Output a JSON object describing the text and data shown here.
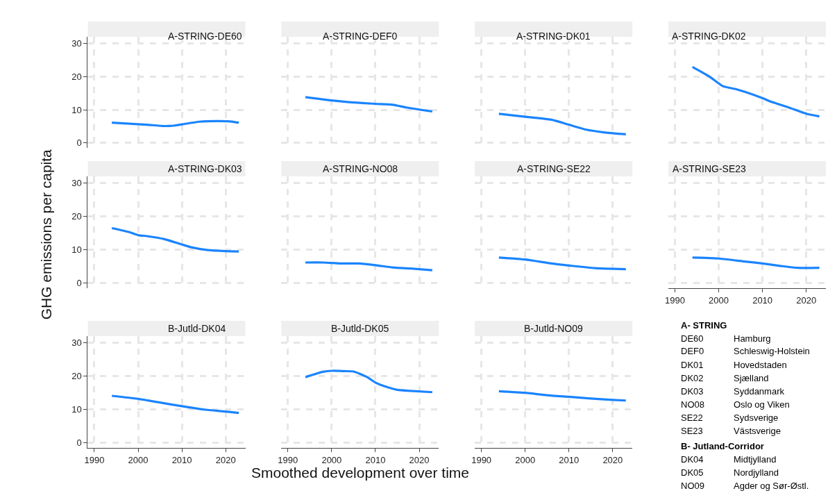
{
  "chart_data": [
    {
      "type": "line",
      "title": "A-STRING-DE60",
      "x": [
        1994,
        1998,
        2002,
        2006,
        2008,
        2010,
        2014,
        2018,
        2021,
        2023
      ],
      "values": [
        6.1,
        5.8,
        5.5,
        5.1,
        5.2,
        5.6,
        6.4,
        6.6,
        6.5,
        6.1
      ],
      "color": "#1a84ff",
      "xlim": [
        1988.5,
        2024.5
      ],
      "xticks": [
        1990,
        2000,
        2010,
        2020
      ],
      "ylim": [
        -1.5,
        32
      ],
      "yticks": [
        0,
        10,
        20,
        30
      ],
      "grid": true,
      "tick_labels": "y"
    },
    {
      "type": "line",
      "title": "A-STRING-DEF0",
      "x": [
        1994,
        2000,
        2004,
        2010,
        2014,
        2017,
        2023
      ],
      "values": [
        13.8,
        12.8,
        12.3,
        11.8,
        11.5,
        10.7,
        9.5
      ],
      "color": "#1a84ff",
      "xlim": [
        1988.5,
        2024.5
      ],
      "xticks": [
        1990,
        2000,
        2010,
        2020
      ],
      "ylim": [
        -1.5,
        32
      ],
      "yticks": [
        0,
        10,
        20,
        30
      ],
      "grid": true,
      "tick_labels": false
    },
    {
      "type": "line",
      "title": "A-STRING-DK01",
      "x": [
        1994,
        2000,
        2006,
        2010,
        2014,
        2018,
        2023
      ],
      "values": [
        8.8,
        7.9,
        7.0,
        5.5,
        4.0,
        3.2,
        2.6
      ],
      "color": "#1a84ff",
      "xlim": [
        1988.5,
        2024.5
      ],
      "xticks": [
        1990,
        2000,
        2010,
        2020
      ],
      "ylim": [
        -1.5,
        32
      ],
      "yticks": [
        0,
        10,
        20,
        30
      ],
      "grid": true,
      "tick_labels": false
    },
    {
      "type": "line",
      "title": "A-STRING-DK02",
      "x": [
        1994,
        1998,
        2001,
        2004,
        2006,
        2010,
        2012,
        2016,
        2020,
        2023
      ],
      "values": [
        22.9,
        19.9,
        17.1,
        16.2,
        15.4,
        13.5,
        12.4,
        10.7,
        8.8,
        8.0
      ],
      "color": "#1a84ff",
      "xlim": [
        1988.5,
        2024.5
      ],
      "xticks": [
        1990,
        2000,
        2010,
        2020
      ],
      "ylim": [
        -1.5,
        32
      ],
      "yticks": [
        0,
        10,
        20,
        30
      ],
      "grid": true,
      "tick_labels": false
    },
    {
      "type": "line",
      "title": "A-STRING-DK03",
      "ylabel": "GHG emissions per capita",
      "x": [
        1994,
        1998,
        2000,
        2002,
        2006,
        2010,
        2012,
        2016,
        2020,
        2023
      ],
      "values": [
        16.5,
        15.3,
        14.4,
        14.1,
        13.2,
        11.6,
        10.8,
        9.9,
        9.6,
        9.5
      ],
      "color": "#1a84ff",
      "xlim": [
        1988.5,
        2024.5
      ],
      "xticks": [
        1990,
        2000,
        2010,
        2020
      ],
      "ylim": [
        -1.5,
        32
      ],
      "yticks": [
        0,
        10,
        20,
        30
      ],
      "grid": true,
      "tick_labels": "y"
    },
    {
      "type": "line",
      "title": "A-STRING-NO08",
      "x": [
        1994,
        1998,
        2002,
        2006,
        2010,
        2014,
        2018,
        2023
      ],
      "values": [
        6.2,
        6.2,
        5.9,
        5.9,
        5.4,
        4.7,
        4.4,
        3.9
      ],
      "color": "#1a84ff",
      "xlim": [
        1988.5,
        2024.5
      ],
      "xticks": [
        1990,
        2000,
        2010,
        2020
      ],
      "ylim": [
        -1.5,
        32
      ],
      "yticks": [
        0,
        10,
        20,
        30
      ],
      "grid": true,
      "tick_labels": false
    },
    {
      "type": "line",
      "title": "A-STRING-SE22",
      "x": [
        1994,
        2000,
        2006,
        2010,
        2016,
        2023
      ],
      "values": [
        7.7,
        7.1,
        5.9,
        5.3,
        4.5,
        4.2
      ],
      "color": "#1a84ff",
      "xlim": [
        1988.5,
        2024.5
      ],
      "xticks": [
        1990,
        2000,
        2010,
        2020
      ],
      "ylim": [
        -1.5,
        32
      ],
      "yticks": [
        0,
        10,
        20,
        30
      ],
      "grid": true,
      "tick_labels": false
    },
    {
      "type": "line",
      "title": "A-STRING-SE23",
      "x": [
        1994,
        2000,
        2006,
        2010,
        2014,
        2018,
        2023
      ],
      "values": [
        7.7,
        7.4,
        6.5,
        5.9,
        5.2,
        4.6,
        4.6
      ],
      "color": "#1a84ff",
      "xlim": [
        1988.5,
        2024.5
      ],
      "xticks": [
        1990,
        2000,
        2010,
        2020
      ],
      "ylim": [
        -1.5,
        32
      ],
      "yticks": [
        0,
        10,
        20,
        30
      ],
      "grid": true,
      "tick_labels": "x"
    },
    {
      "type": "line",
      "title": "B-Jutld-DK04",
      "x": [
        1994,
        2000,
        2005,
        2010,
        2015,
        2020,
        2023
      ],
      "values": [
        14.1,
        13.2,
        12.1,
        11.0,
        10.0,
        9.4,
        9.0
      ],
      "color": "#1a84ff",
      "xlim": [
        1988.5,
        2024.5
      ],
      "xticks": [
        1990,
        2000,
        2010,
        2020
      ],
      "ylim": [
        -1.5,
        32
      ],
      "yticks": [
        0,
        10,
        20,
        30
      ],
      "grid": true
    },
    {
      "type": "line",
      "title": "B-Jutld-DK05",
      "xlabel": "Smoothed development over time",
      "x": [
        1994,
        1998,
        2000,
        2003,
        2005,
        2008,
        2010,
        2012,
        2015,
        2018,
        2023
      ],
      "values": [
        19.7,
        21.3,
        21.6,
        21.5,
        21.4,
        19.8,
        18.1,
        17.0,
        15.9,
        15.6,
        15.2
      ],
      "color": "#1a84ff",
      "xlim": [
        1988.5,
        2024.5
      ],
      "xticks": [
        1990,
        2000,
        2010,
        2020
      ],
      "ylim": [
        -1.5,
        32
      ],
      "yticks": [
        0,
        10,
        20,
        30
      ],
      "grid": true,
      "tick_labels": "x"
    },
    {
      "type": "line",
      "title": "B-Jutld-NO09",
      "x": [
        1994,
        2000,
        2005,
        2010,
        2015,
        2020,
        2023
      ],
      "values": [
        15.5,
        15.0,
        14.3,
        13.8,
        13.3,
        12.9,
        12.7
      ],
      "color": "#1a84ff",
      "xlim": [
        1988.5,
        2024.5
      ],
      "xticks": [
        1990,
        2000,
        2010,
        2020
      ],
      "ylim": [
        -1.5,
        32
      ],
      "yticks": [
        0,
        10,
        20,
        30
      ],
      "grid": true,
      "tick_labels": "x"
    },
    {
      "type": "other",
      "title": "A- STRING",
      "categories": [
        "DE60",
        "DEF0",
        "DK01",
        "DK02",
        "DK03",
        "NO08",
        "SE22",
        "SE23"
      ],
      "annotations": [
        "Hamburg",
        "Schleswig-Holstein",
        "Hovedstaden",
        "Sjælland",
        "Syddanmark",
        "Oslo og Viken",
        "Sydsverige",
        "Västsverige"
      ]
    },
    {
      "type": "other",
      "title": "B- Jutland-Corridor",
      "categories": [
        "DK04",
        "DK05",
        "NO09"
      ],
      "annotations": [
        "Midtjylland",
        "Nordjylland",
        "Agder og Sør-Østl."
      ]
    }
  ]
}
